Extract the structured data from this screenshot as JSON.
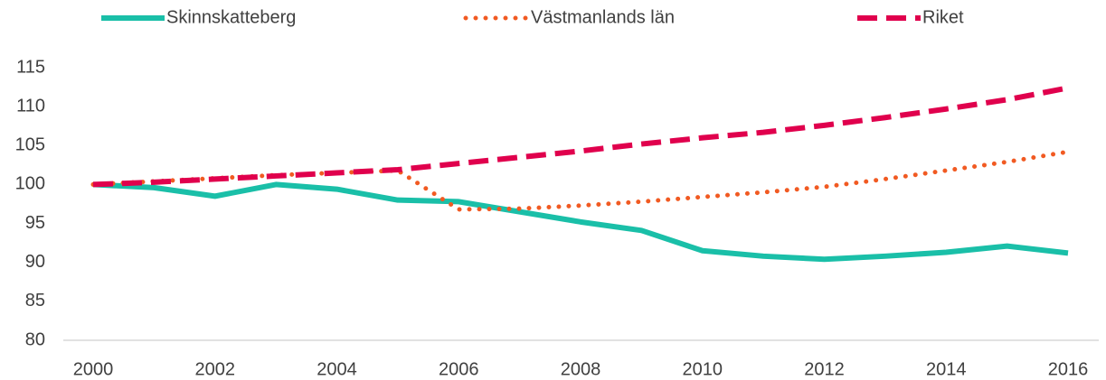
{
  "chart_data": {
    "type": "line",
    "x": [
      2000,
      2001,
      2002,
      2003,
      2004,
      2005,
      2006,
      2007,
      2008,
      2009,
      2010,
      2011,
      2012,
      2013,
      2014,
      2015,
      2016
    ],
    "series": [
      {
        "name": "Skinnskatteberg",
        "color": "#1abfa8",
        "dash": "solid",
        "values": [
          100,
          99.6,
          98.5,
          100,
          99.4,
          98,
          97.8,
          96.5,
          95.2,
          94.1,
          91.5,
          90.8,
          90.4,
          90.8,
          91.3,
          92.1,
          91.2
        ]
      },
      {
        "name": "Västmanlands län",
        "color": "#f15a22",
        "dash": "dotted",
        "values": [
          100,
          100.4,
          100.8,
          101.2,
          101.5,
          101.8,
          96.8,
          96.9,
          97.3,
          97.8,
          98.4,
          99,
          99.7,
          100.7,
          101.8,
          102.9,
          104.2
        ]
      },
      {
        "name": "Riket",
        "color": "#e0004d",
        "dash": "dashed",
        "values": [
          100,
          100.3,
          100.7,
          101.1,
          101.5,
          101.9,
          102.7,
          103.5,
          104.3,
          105.2,
          106,
          106.7,
          107.6,
          108.6,
          109.7,
          110.9,
          112.4
        ]
      }
    ],
    "xlim": [
      2000,
      2016
    ],
    "xticks": [
      2000,
      2002,
      2004,
      2006,
      2008,
      2010,
      2012,
      2014,
      2016
    ],
    "ylim": [
      80,
      115
    ],
    "yticks": [
      80,
      85,
      90,
      95,
      100,
      105,
      110,
      115
    ],
    "grid": false,
    "legend": "top"
  }
}
